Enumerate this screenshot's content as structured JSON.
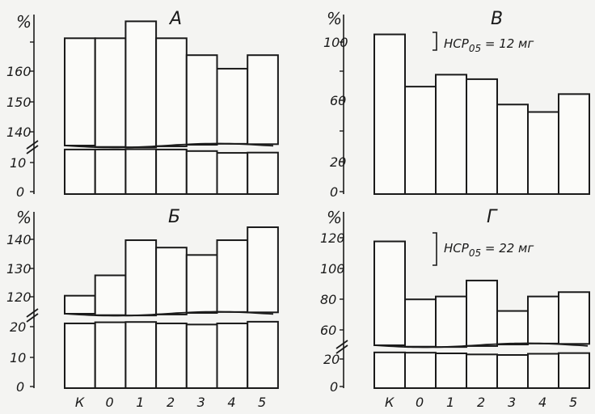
{
  "chart_data": [
    {
      "type": "bar",
      "title": "А",
      "ylabel": "%",
      "categories": [
        "К",
        "0",
        "1",
        "2",
        "3",
        "4",
        "5"
      ],
      "values": [
        168,
        168,
        173,
        168,
        163,
        159,
        163
      ],
      "broken_axis": true,
      "lower_ticks": [
        "0",
        "10"
      ],
      "upper_ticks": [
        "140",
        "150",
        "160"
      ],
      "ylim_lower": [
        0,
        15
      ],
      "ylim_upper": [
        137,
        175
      ],
      "lower_segment_values": [
        14.5,
        14.5,
        14.6,
        14.5,
        14,
        13.4,
        13.5
      ]
    },
    {
      "type": "bar",
      "title": "В",
      "ylabel": "%",
      "categories": [
        "К",
        "0",
        "1",
        "2",
        "3",
        "4",
        "5"
      ],
      "values": [
        107,
        72,
        80,
        77,
        60,
        55,
        67
      ],
      "yticks": [
        "0",
        "20",
        "60",
        "100"
      ],
      "ylim": [
        0,
        110
      ],
      "annotation": "НСР05 = 12 мг",
      "annotation_sub": "05"
    },
    {
      "type": "bar",
      "title": "Б",
      "ylabel": "%",
      "categories": [
        "К",
        "0",
        "1",
        "2",
        "3",
        "4",
        "5"
      ],
      "values": [
        120,
        125.5,
        135,
        133,
        131,
        135,
        138.5
      ],
      "broken_axis": true,
      "lower_ticks": [
        "0",
        "10",
        "20"
      ],
      "upper_ticks": [
        "120",
        "130",
        "140"
      ],
      "ylim_lower": [
        0,
        25
      ],
      "ylim_upper": [
        116,
        142
      ],
      "lower_segment_values": [
        23,
        23.4,
        23.5,
        23,
        22.6,
        23,
        23.6
      ]
    },
    {
      "type": "bar",
      "title": "Г",
      "ylabel": "%",
      "categories": [
        "К",
        "0",
        "1",
        "2",
        "3",
        "4",
        "5"
      ],
      "values": [
        118,
        78,
        80,
        91,
        70,
        80,
        83
      ],
      "broken_axis": true,
      "lower_ticks": [
        "0",
        "20"
      ],
      "upper_ticks": [
        "60",
        "80",
        "100",
        "120"
      ],
      "ylim_lower": [
        0,
        30
      ],
      "ylim_upper": [
        48,
        125
      ],
      "lower_segment_values": [
        26.5,
        26.3,
        25.8,
        25,
        24.6,
        25.5,
        26
      ],
      "annotation": "НСР05 = 22 мг",
      "annotation_sub": "05"
    }
  ]
}
